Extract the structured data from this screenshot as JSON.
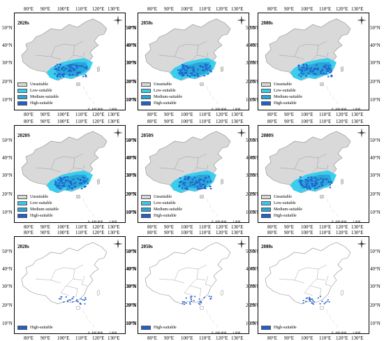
{
  "lon_labels": [
    "80°E",
    "90°E",
    "100°E",
    "110°E",
    "120°E",
    "130°E"
  ],
  "lat_labels": [
    "50°N",
    "40°N",
    "30°N",
    "20°N",
    "10°N"
  ],
  "panels": [
    {
      "title": "2020s",
      "type": "full"
    },
    {
      "title": "2050s",
      "type": "full"
    },
    {
      "title": "2080s",
      "type": "full"
    },
    {
      "title": "2020S",
      "type": "full"
    },
    {
      "title": "2050S",
      "type": "full"
    },
    {
      "title": "2080S",
      "type": "full"
    },
    {
      "title": "2020s",
      "type": "outline"
    },
    {
      "title": "2050s",
      "type": "outline"
    },
    {
      "title": "2080s",
      "type": "outline"
    }
  ],
  "legend": [
    {
      "label": "Unsuitable",
      "color": "#d9d9d9"
    },
    {
      "label": "Low-suitable",
      "color": "#33ccee"
    },
    {
      "label": "Medium-suitable",
      "color": "#2aa6d6"
    },
    {
      "label": "High-suitable",
      "color": "#1f5fd0"
    }
  ],
  "legend_outline": {
    "label": "High-suitable",
    "color": "#1f5fd0"
  },
  "scale": {
    "ticks": [
      "0",
      "400",
      "800",
      "1,600"
    ],
    "unit": "Kilometers"
  },
  "colors": {
    "land": "#d9d9d9",
    "border": "#8c8c8c",
    "low": "#33ccee",
    "medium": "#2aa6d6",
    "high": "#1f5fd0"
  }
}
